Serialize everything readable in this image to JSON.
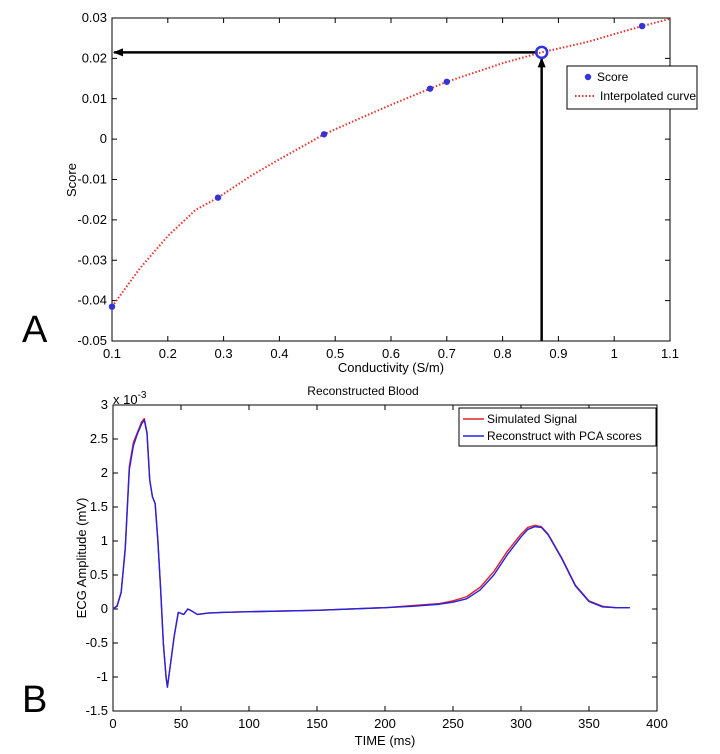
{
  "panels": {
    "a_label": "A",
    "b_label": "B"
  },
  "chart_data": [
    {
      "type": "scatter",
      "title": "",
      "xlabel": "Conductivity (S/m)",
      "ylabel": "Score",
      "xlim": [
        0.1,
        1.1
      ],
      "ylim": [
        -0.05,
        0.03
      ],
      "xticks": [
        "0.1",
        "0.2",
        "0.3",
        "0.4",
        "0.5",
        "0.6",
        "0.7",
        "0.8",
        "0.9",
        "1",
        "1.1"
      ],
      "yticks": [
        "-0.05",
        "-0.04",
        "-0.03",
        "-0.02",
        "-0.01",
        "0",
        "0.01",
        "0.02",
        "0.03"
      ],
      "grid": false,
      "legend_position": "upper-right",
      "series": [
        {
          "name": "Score",
          "kind": "markers",
          "color": "#3333dd",
          "x": [
            0.1,
            0.29,
            0.48,
            0.67,
            0.7,
            1.05
          ],
          "y": [
            -0.0415,
            -0.0145,
            0.0012,
            0.0125,
            0.0142,
            0.028
          ]
        },
        {
          "name": "Interpolated curve",
          "kind": "dotted-line",
          "color": "#e8322f",
          "x": [
            0.1,
            0.15,
            0.2,
            0.25,
            0.29,
            0.35,
            0.4,
            0.48,
            0.55,
            0.6,
            0.67,
            0.7,
            0.75,
            0.8,
            0.87,
            0.95,
            1.05,
            1.1
          ],
          "y": [
            -0.0415,
            -0.032,
            -0.024,
            -0.0175,
            -0.0145,
            -0.009,
            -0.005,
            0.0012,
            0.0055,
            0.0085,
            0.0125,
            0.0142,
            0.0165,
            0.0188,
            0.0215,
            0.024,
            0.028,
            0.0298
          ]
        }
      ],
      "annotation": {
        "marker_x": 0.87,
        "marker_y": 0.0215,
        "marker_color": "#3333dd",
        "arrow_color": "#000000"
      }
    },
    {
      "type": "line",
      "title": "Reconstructed Blood",
      "xlabel": "TIME (ms)",
      "ylabel": "ECG Amplitude (mV)",
      "y_multiplier_label": "x 10",
      "y_multiplier_exp": "-3",
      "xlim": [
        0,
        400
      ],
      "ylim": [
        -1.5,
        3
      ],
      "xticks": [
        "0",
        "50",
        "100",
        "150",
        "200",
        "250",
        "300",
        "350",
        "400"
      ],
      "yticks": [
        "-1.5",
        "-1",
        "-0.5",
        "0",
        "0.5",
        "1",
        "1.5",
        "2",
        "2.5",
        "3"
      ],
      "grid": false,
      "legend_position": "upper-right",
      "series": [
        {
          "name": "Simulated Signal",
          "color": "#e0202a",
          "x": [
            0,
            3,
            6,
            9,
            12,
            15,
            18,
            21,
            23,
            25,
            27,
            29,
            31,
            33,
            35,
            37,
            39,
            40,
            42,
            45,
            48,
            52,
            55,
            58,
            62,
            70,
            80,
            100,
            150,
            200,
            220,
            240,
            250,
            260,
            270,
            280,
            290,
            300,
            305,
            310,
            315,
            320,
            330,
            340,
            350,
            360,
            370,
            380
          ],
          "y": [
            0.0,
            0.05,
            0.25,
            0.9,
            2.1,
            2.45,
            2.6,
            2.75,
            2.8,
            2.6,
            1.9,
            1.65,
            1.55,
            1.0,
            0.3,
            -0.5,
            -1.0,
            -1.15,
            -0.85,
            -0.4,
            -0.05,
            -0.08,
            0.0,
            -0.03,
            -0.08,
            -0.06,
            -0.05,
            -0.04,
            -0.02,
            0.02,
            0.05,
            0.08,
            0.12,
            0.18,
            0.32,
            0.55,
            0.85,
            1.1,
            1.2,
            1.23,
            1.21,
            1.1,
            0.75,
            0.35,
            0.12,
            0.04,
            0.02,
            0.02
          ]
        },
        {
          "name": "Reconstruct with PCA scores",
          "color": "#2323e0",
          "x": [
            0,
            3,
            6,
            9,
            12,
            15,
            18,
            21,
            23,
            25,
            27,
            29,
            31,
            33,
            35,
            37,
            39,
            40,
            42,
            45,
            48,
            52,
            55,
            58,
            62,
            70,
            80,
            100,
            150,
            200,
            220,
            240,
            250,
            260,
            270,
            280,
            290,
            300,
            305,
            310,
            315,
            320,
            330,
            340,
            350,
            360,
            370,
            380
          ],
          "y": [
            0.0,
            0.04,
            0.24,
            0.88,
            2.05,
            2.4,
            2.58,
            2.72,
            2.78,
            2.58,
            1.9,
            1.65,
            1.55,
            1.0,
            0.3,
            -0.5,
            -1.0,
            -1.15,
            -0.85,
            -0.4,
            -0.05,
            -0.08,
            0.0,
            -0.03,
            -0.08,
            -0.06,
            -0.05,
            -0.04,
            -0.02,
            0.02,
            0.04,
            0.07,
            0.1,
            0.15,
            0.28,
            0.5,
            0.8,
            1.06,
            1.17,
            1.21,
            1.2,
            1.09,
            0.74,
            0.34,
            0.11,
            0.03,
            0.02,
            0.02
          ]
        }
      ]
    }
  ]
}
